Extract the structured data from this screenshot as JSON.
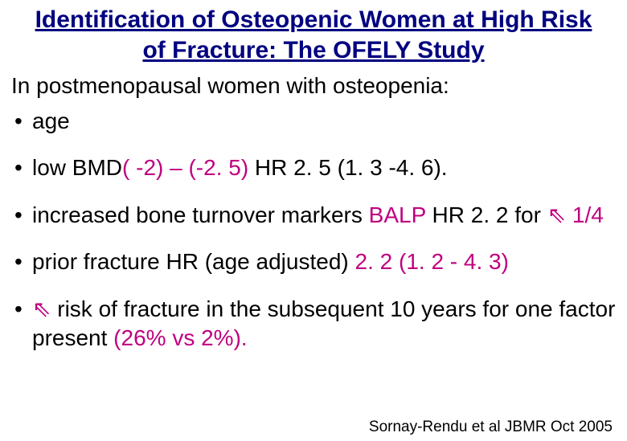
{
  "title": {
    "text": "Identification of Osteopenic Women at High Risk of Fracture: The OFELY Study",
    "color": "#000080",
    "fontsize": 30
  },
  "subtitle": {
    "text": "In postmenopausal women with osteopenia:",
    "color": "#000000",
    "fontsize": 28
  },
  "bullets": {
    "fontsize": 28,
    "items": [
      {
        "segments": [
          {
            "text": "age",
            "color": "#000000"
          }
        ]
      },
      {
        "segments": [
          {
            "text": "low BMD",
            "color": "#000000"
          },
          {
            "text": "( -2) – (-2. 5)",
            "color": "#c00080"
          },
          {
            "text": " HR 2. 5 (1. 3 -4. 6).",
            "color": "#000000"
          }
        ]
      },
      {
        "segments": [
          {
            "text": "increased bone turnover markers ",
            "color": "#000000"
          },
          {
            "text": "BALP",
            "color": "#c00080"
          },
          {
            "text": " HR 2. 2 for ",
            "color": "#000000"
          },
          {
            "text": "⇖",
            "color": "#c00080",
            "arrow": true
          },
          {
            "text": " 1/4",
            "color": "#c00080"
          }
        ]
      },
      {
        "segments": [
          {
            "text": "prior fracture HR (age adjusted) ",
            "color": "#000000"
          },
          {
            "text": "2. 2 (1. 2 - 4. 3)",
            "color": "#c00080"
          }
        ]
      },
      {
        "segments": [
          {
            "text": "⇖",
            "color": "#c00080",
            "arrow": true
          },
          {
            "text": " risk of fracture in the subsequent 10 years for one factor present ",
            "color": "#000000"
          },
          {
            "text": "(26% vs 2%).",
            "color": "#c00080"
          }
        ]
      }
    ]
  },
  "citation": {
    "text": "Sornay-Rendu et al JBMR Oct 2005",
    "color": "#000000",
    "fontsize": 19
  },
  "background_color": "#ffffff"
}
